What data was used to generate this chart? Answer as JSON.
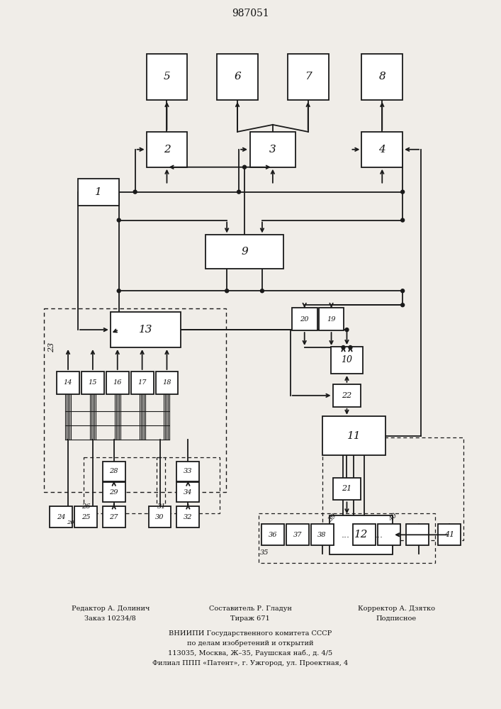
{
  "title": "987051",
  "bg_color": "#f0ede8",
  "box_color": "#ffffff",
  "line_color": "#1a1a1a",
  "text_color": "#111111",
  "footer_col1": [
    "Редактор А. Долинич",
    "Заказ 10234/8"
  ],
  "footer_col2": [
    "Составитель Р. Гладун",
    "Тираж 671"
  ],
  "footer_col3": [
    "Корректор А. Дзятко",
    "Подписное"
  ],
  "footer_bottom": [
    "ВНИИПИ Государственного комитета СССР",
    "по делам изобретений и открытий",
    "113035, Москва, Ж–35, Раушская наб., д. 4/5",
    "Филиал ППП «Патент», г. Ужгород, ул. Проектная, 4"
  ]
}
